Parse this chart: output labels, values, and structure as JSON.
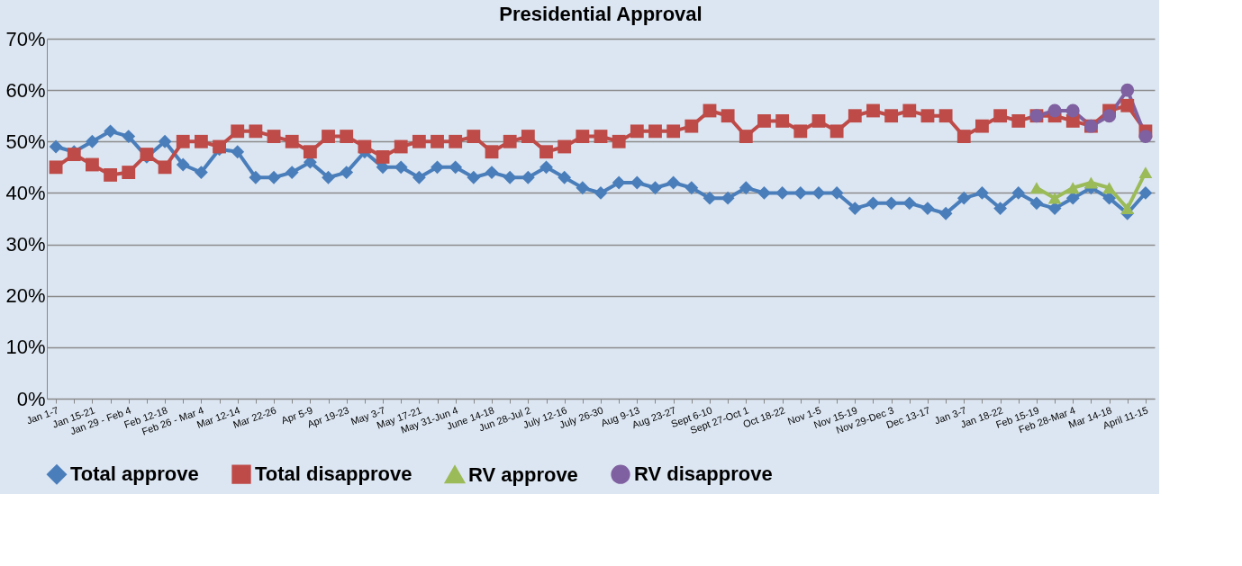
{
  "chart_data": {
    "type": "line",
    "title": "Presidential Approval",
    "categories": [
      "Jan 1-7",
      null,
      "Jan 15-21",
      null,
      "Jan 29 - Feb 4",
      null,
      "Feb 12-18",
      null,
      "Feb 26 - Mar 4",
      null,
      "Mar 12-14",
      null,
      "Mar 22-26",
      null,
      "Apr 5-9",
      null,
      "Apr 19-23",
      null,
      "May 3-7",
      null,
      "May 17-21",
      null,
      "May 31-Jun 4",
      null,
      "June 14-18",
      null,
      "Jun 28-Jul 2",
      null,
      "July 12-16",
      null,
      "July 26-30",
      null,
      "Aug 9-13",
      null,
      "Aug 23-27",
      null,
      "Sept 6-10",
      null,
      "Sept 27-Oct 1",
      null,
      "Oct 18-22",
      null,
      "Nov 1-5",
      null,
      "Nov 15-19",
      null,
      "Nov 29-Dec 3",
      null,
      "Dec 13-17",
      null,
      "Jan 3-7",
      null,
      "Jan 18-22",
      null,
      "Feb 15-19",
      null,
      "Feb 28-Mar 4",
      null,
      "Mar 14-18",
      null,
      "April 11-15"
    ],
    "series": [
      {
        "name": "Total approve",
        "color": "#4a7ebb",
        "marker": "diamond",
        "values": [
          49,
          48,
          50,
          52,
          51,
          47,
          50,
          45.5,
          44,
          48.5,
          48,
          43,
          43,
          44,
          46,
          43,
          44,
          48,
          45,
          45,
          43,
          45,
          45,
          43,
          44,
          43,
          43,
          45,
          43,
          41,
          40,
          42,
          42,
          41,
          42,
          41,
          39,
          39,
          41,
          40,
          40,
          40,
          40,
          40,
          37,
          38,
          38,
          38,
          37,
          36,
          39,
          40,
          37,
          40,
          38,
          37,
          39,
          41,
          39,
          36,
          40
        ]
      },
      {
        "name": "Total disapprove",
        "color": "#be4b48",
        "marker": "square",
        "values": [
          45,
          47.5,
          45.5,
          43.5,
          44,
          47.5,
          45,
          50,
          50,
          49,
          52,
          52,
          51,
          50,
          48,
          51,
          51,
          49,
          47,
          49,
          50,
          50,
          50,
          51,
          48,
          50,
          51,
          48,
          49,
          51,
          51,
          50,
          52,
          52,
          52,
          53,
          56,
          55,
          51,
          54,
          54,
          52,
          54,
          52,
          55,
          56,
          55,
          56,
          55,
          55,
          51,
          53,
          55,
          54,
          55,
          55,
          54,
          53,
          56,
          57,
          52
        ]
      },
      {
        "name": "RV approve",
        "color": "#9bbb59",
        "marker": "triangle",
        "values": [
          null,
          null,
          null,
          null,
          null,
          null,
          null,
          null,
          null,
          null,
          null,
          null,
          null,
          null,
          null,
          null,
          null,
          null,
          null,
          null,
          null,
          null,
          null,
          null,
          null,
          null,
          null,
          null,
          null,
          null,
          null,
          null,
          null,
          null,
          null,
          null,
          null,
          null,
          null,
          null,
          null,
          null,
          null,
          null,
          null,
          null,
          null,
          null,
          null,
          null,
          null,
          null,
          null,
          null,
          41,
          39,
          41,
          42,
          41,
          37,
          44
        ]
      },
      {
        "name": "RV disapprove",
        "color": "#7f60a0",
        "marker": "circle",
        "values": [
          null,
          null,
          null,
          null,
          null,
          null,
          null,
          null,
          null,
          null,
          null,
          null,
          null,
          null,
          null,
          null,
          null,
          null,
          null,
          null,
          null,
          null,
          null,
          null,
          null,
          null,
          null,
          null,
          null,
          null,
          null,
          null,
          null,
          null,
          null,
          null,
          null,
          null,
          null,
          null,
          null,
          null,
          null,
          null,
          null,
          null,
          null,
          null,
          null,
          null,
          null,
          null,
          null,
          null,
          55,
          56,
          56,
          53,
          55,
          60,
          51
        ]
      }
    ],
    "ylim": [
      0,
      70
    ],
    "yticks": [
      {
        "value": 0,
        "label": "0%"
      },
      {
        "value": 10,
        "label": "10%"
      },
      {
        "value": 20,
        "label": "20%"
      },
      {
        "value": 30,
        "label": "30%"
      },
      {
        "value": 40,
        "label": "40%"
      },
      {
        "value": 50,
        "label": "50%"
      },
      {
        "value": 60,
        "label": "60%"
      },
      {
        "value": 70,
        "label": "70%"
      }
    ],
    "grid": "y",
    "legend": "bottom",
    "line_style": "solid"
  }
}
